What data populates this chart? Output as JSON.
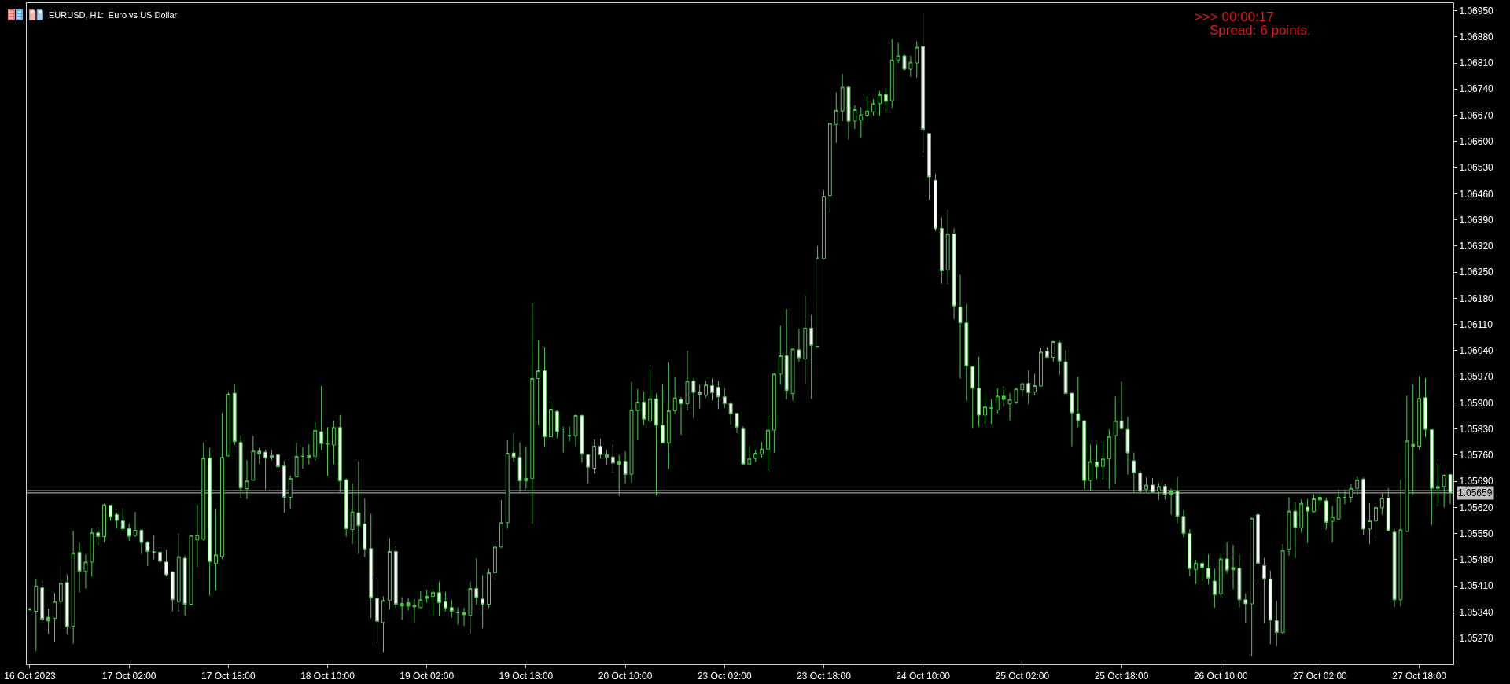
{
  "chart_data": {
    "type": "candlestick",
    "title": "EURUSD, H1:  Euro vs US Dollar",
    "annotations": [
      ">>> 00:00:17",
      "Spread: 6 points."
    ],
    "color": "#4ccc4c",
    "categories": [
      "16 Oct 2023",
      null,
      null,
      null,
      null,
      null,
      null,
      null,
      null,
      null,
      null,
      null,
      null,
      null,
      null,
      null,
      "17 Oct 02:00",
      null,
      null,
      null,
      null,
      null,
      null,
      null,
      null,
      null,
      null,
      null,
      null,
      null,
      null,
      null,
      "17 Oct 18:00",
      null,
      null,
      null,
      null,
      null,
      null,
      null,
      null,
      null,
      null,
      null,
      null,
      null,
      null,
      null,
      "18 Oct 10:00",
      null,
      null,
      null,
      null,
      null,
      null,
      null,
      null,
      null,
      null,
      null,
      null,
      null,
      null,
      null,
      "19 Oct 02:00",
      null,
      null,
      null,
      null,
      null,
      null,
      null,
      null,
      null,
      null,
      null,
      null,
      null,
      null,
      null,
      "19 Oct 18:00",
      null,
      null,
      null,
      null,
      null,
      null,
      null,
      null,
      null,
      null,
      null,
      null,
      null,
      null,
      null,
      "20 Oct 10:00",
      null,
      null,
      null,
      null,
      null,
      null,
      null,
      null,
      null,
      null,
      null,
      null,
      null,
      null,
      null,
      "23 Oct 02:00",
      null,
      null,
      null,
      null,
      null,
      null,
      null,
      null,
      null,
      null,
      null,
      null,
      null,
      null,
      null,
      "23 Oct 18:00",
      null,
      null,
      null,
      null,
      null,
      null,
      null,
      null,
      null,
      null,
      null,
      null,
      null,
      null,
      null,
      "24 Oct 10:00",
      null,
      null,
      null,
      null,
      null,
      null,
      null,
      null,
      null,
      null,
      null,
      null,
      null,
      null,
      null,
      "25 Oct 02:00",
      null,
      null,
      null,
      null,
      null,
      null,
      null,
      null,
      null,
      null,
      null,
      null,
      null,
      null,
      null,
      "25 Oct 18:00",
      null,
      null,
      null,
      null,
      null,
      null,
      null,
      null,
      null,
      null,
      null,
      null,
      null,
      null,
      null,
      "26 Oct 10:00",
      null,
      null,
      null,
      null,
      null,
      null,
      null,
      null,
      null,
      null,
      null,
      null,
      null,
      null,
      null,
      "27 Oct 02:00",
      null,
      null,
      null,
      null,
      null,
      null,
      null,
      null,
      null,
      null,
      null,
      null,
      null,
      null,
      null,
      "27 Oct 18:00",
      null,
      null,
      null,
      null,
      null
    ],
    "ohlc": [
      [
        1.05347,
        1.05352,
        1.05343,
        1.05347
      ],
      [
        1.05342,
        1.0543,
        1.05236,
        1.0541
      ],
      [
        1.05405,
        1.05424,
        1.05316,
        1.05321
      ],
      [
        1.05316,
        1.05349,
        1.05281,
        1.05326
      ],
      [
        1.05323,
        1.05391,
        1.05261,
        1.05368
      ],
      [
        1.05368,
        1.05463,
        1.05295,
        1.05417
      ],
      [
        1.05419,
        1.05441,
        1.05281,
        1.053
      ],
      [
        1.05302,
        1.05557,
        1.05256,
        1.05498
      ],
      [
        1.055,
        1.05526,
        1.05393,
        1.05449
      ],
      [
        1.05449,
        1.05494,
        1.05403,
        1.05474
      ],
      [
        1.05474,
        1.05564,
        1.05435,
        1.05552
      ],
      [
        1.05552,
        1.05566,
        1.05519,
        1.05542
      ],
      [
        1.05542,
        1.0563,
        1.05526,
        1.05627
      ],
      [
        1.05626,
        1.05627,
        1.05584,
        1.05594
      ],
      [
        1.05601,
        1.05606,
        1.05563,
        1.05585
      ],
      [
        1.05584,
        1.05616,
        1.05557,
        1.05563
      ],
      [
        1.05563,
        1.05576,
        1.05531,
        1.05543
      ],
      [
        1.05545,
        1.05608,
        1.05542,
        1.05559
      ],
      [
        1.05559,
        1.05561,
        1.05495,
        1.05526
      ],
      [
        1.05526,
        1.05531,
        1.05463,
        1.05502
      ],
      [
        1.05501,
        1.05545,
        1.05481,
        1.05501
      ],
      [
        1.055,
        1.05507,
        1.05454,
        1.05476
      ],
      [
        1.05474,
        1.05507,
        1.05436,
        1.0544
      ],
      [
        1.05447,
        1.05451,
        1.05342,
        1.05373
      ],
      [
        1.05368,
        1.05549,
        1.05342,
        1.05488
      ],
      [
        1.05484,
        1.05491,
        1.0533,
        1.05361
      ],
      [
        1.05361,
        1.05547,
        1.05359,
        1.05545
      ],
      [
        1.05533,
        1.05627,
        1.05461,
        1.05546
      ],
      [
        1.05535,
        1.05794,
        1.05531,
        1.05752
      ],
      [
        1.05752,
        1.0578,
        1.05384,
        1.05475
      ],
      [
        1.0547,
        1.05616,
        1.05398,
        1.05493
      ],
      [
        1.05489,
        1.05873,
        1.05482,
        1.05754
      ],
      [
        1.05758,
        1.05929,
        1.05757,
        1.05923
      ],
      [
        1.05926,
        1.05951,
        1.05787,
        1.05796
      ],
      [
        1.05794,
        1.05814,
        1.05646,
        1.05672
      ],
      [
        1.0567,
        1.05747,
        1.05642,
        1.05691
      ],
      [
        1.05693,
        1.05812,
        1.05691,
        1.05771
      ],
      [
        1.05771,
        1.0578,
        1.05737,
        1.05763
      ],
      [
        1.05768,
        1.05775,
        1.05668,
        1.05752
      ],
      [
        1.05759,
        1.05773,
        1.05747,
        1.05754
      ],
      [
        1.05761,
        1.05763,
        1.05721,
        1.05729
      ],
      [
        1.05731,
        1.05745,
        1.05606,
        1.05647
      ],
      [
        1.05647,
        1.05705,
        1.05616,
        1.05698
      ],
      [
        1.05702,
        1.05793,
        1.057,
        1.05757
      ],
      [
        1.05757,
        1.05782,
        1.05724,
        1.05757
      ],
      [
        1.05754,
        1.05789,
        1.05735,
        1.05759
      ],
      [
        1.05757,
        1.05849,
        1.05745,
        1.05826
      ],
      [
        1.05823,
        1.05945,
        1.05773,
        1.05791
      ],
      [
        1.0579,
        1.05835,
        1.05705,
        1.0579
      ],
      [
        1.05787,
        1.05852,
        1.05735,
        1.05834
      ],
      [
        1.05834,
        1.05868,
        1.05661,
        1.05691
      ],
      [
        1.05694,
        1.05698,
        1.05542,
        1.05563
      ],
      [
        1.05561,
        1.05684,
        1.05522,
        1.05608
      ],
      [
        1.05606,
        1.05744,
        1.05495,
        1.05571
      ],
      [
        1.05576,
        1.05644,
        1.05487,
        1.05508
      ],
      [
        1.0551,
        1.05603,
        1.05323,
        1.05378
      ],
      [
        1.05377,
        1.05431,
        1.05256,
        1.05315
      ],
      [
        1.05312,
        1.05382,
        1.05233,
        1.05371
      ],
      [
        1.05371,
        1.05538,
        1.05347,
        1.05502
      ],
      [
        1.05502,
        1.05516,
        1.05351,
        1.05361
      ],
      [
        1.05363,
        1.0538,
        1.05319,
        1.05356
      ],
      [
        1.05356,
        1.05378,
        1.05344,
        1.05365
      ],
      [
        1.05358,
        1.05375,
        1.05312,
        1.05354
      ],
      [
        1.05352,
        1.05396,
        1.05351,
        1.05373
      ],
      [
        1.05382,
        1.05399,
        1.05365,
        1.05377
      ],
      [
        1.05382,
        1.05403,
        1.0533,
        1.05393
      ],
      [
        1.05392,
        1.05422,
        1.05328,
        1.05365
      ],
      [
        1.05368,
        1.05394,
        1.05342,
        1.0535
      ],
      [
        1.05352,
        1.05373,
        1.05324,
        1.05342
      ],
      [
        1.05338,
        1.05352,
        1.05307,
        1.05338
      ],
      [
        1.05338,
        1.05351,
        1.05303,
        1.05333
      ],
      [
        1.05331,
        1.05422,
        1.05282,
        1.05403
      ],
      [
        1.05403,
        1.05484,
        1.05359,
        1.05378
      ],
      [
        1.05375,
        1.05439,
        1.05296,
        1.05361
      ],
      [
        1.05361,
        1.05456,
        1.05351,
        1.05445
      ],
      [
        1.05445,
        1.05526,
        1.05428,
        1.05514
      ],
      [
        1.05514,
        1.0564,
        1.05512,
        1.05579
      ],
      [
        1.05579,
        1.058,
        1.05563,
        1.05765
      ],
      [
        1.05766,
        1.05818,
        1.05742,
        1.05754
      ],
      [
        1.05754,
        1.05794,
        1.0566,
        1.05691
      ],
      [
        1.05691,
        1.05784,
        1.0567,
        1.05698
      ],
      [
        1.05698,
        1.06168,
        1.05576,
        1.05965
      ],
      [
        1.05965,
        1.06067,
        1.0584,
        1.05986
      ],
      [
        1.05986,
        1.0605,
        1.05784,
        1.05809
      ],
      [
        1.05809,
        1.05905,
        1.05808,
        1.05883
      ],
      [
        1.05877,
        1.05881,
        1.05805,
        1.05823
      ],
      [
        1.05822,
        1.05836,
        1.05767,
        1.05822
      ],
      [
        1.05812,
        1.05837,
        1.05797,
        1.05812
      ],
      [
        1.05812,
        1.05869,
        1.05784,
        1.05866
      ],
      [
        1.05866,
        1.05869,
        1.0574,
        1.05763
      ],
      [
        1.05761,
        1.05763,
        1.05684,
        1.05728
      ],
      [
        1.05725,
        1.05802,
        1.05711,
        1.05784
      ],
      [
        1.05784,
        1.05803,
        1.05751,
        1.05761
      ],
      [
        1.05761,
        1.05774,
        1.05734,
        1.05754
      ],
      [
        1.05755,
        1.05789,
        1.05714,
        1.05739
      ],
      [
        1.05735,
        1.05761,
        1.05651,
        1.05744
      ],
      [
        1.05744,
        1.0577,
        1.05684,
        1.05708
      ],
      [
        1.05709,
        1.05956,
        1.05686,
        1.05881
      ],
      [
        1.05879,
        1.05937,
        1.058,
        1.05902
      ],
      [
        1.05902,
        1.0593,
        1.0584,
        1.05856
      ],
      [
        1.05851,
        1.05991,
        1.05849,
        1.05911
      ],
      [
        1.05911,
        1.05925,
        1.05652,
        1.0584
      ],
      [
        1.0584,
        1.05951,
        1.05791,
        1.05793
      ],
      [
        1.05793,
        1.06008,
        1.05723,
        1.05879
      ],
      [
        1.05879,
        1.05968,
        1.05872,
        1.05913
      ],
      [
        1.05909,
        1.05916,
        1.05814,
        1.05898
      ],
      [
        1.05898,
        1.06039,
        1.0588,
        1.05958
      ],
      [
        1.05958,
        1.05965,
        1.05859,
        1.05928
      ],
      [
        1.05927,
        1.05949,
        1.05885,
        1.05923
      ],
      [
        1.0592,
        1.05958,
        1.05914,
        1.05948
      ],
      [
        1.05946,
        1.05965,
        1.05906,
        1.05927
      ],
      [
        1.05942,
        1.05958,
        1.05883,
        1.05916
      ],
      [
        1.05916,
        1.05939,
        1.05886,
        1.05898
      ],
      [
        1.05898,
        1.05902,
        1.05842,
        1.05871
      ],
      [
        1.05872,
        1.05873,
        1.05819,
        1.05835
      ],
      [
        1.0583,
        1.05837,
        1.05735,
        1.05736
      ],
      [
        1.05736,
        1.05784,
        1.05735,
        1.05751
      ],
      [
        1.05751,
        1.05774,
        1.05742,
        1.05765
      ],
      [
        1.05763,
        1.05795,
        1.05754,
        1.05776
      ],
      [
        1.05776,
        1.05865,
        1.05718,
        1.05827
      ],
      [
        1.05827,
        1.0598,
        1.05767,
        1.05977
      ],
      [
        1.05977,
        1.06106,
        1.05949,
        1.06026
      ],
      [
        1.06026,
        1.06151,
        1.05909,
        1.05933
      ],
      [
        1.05925,
        1.06046,
        1.05906,
        1.06044
      ],
      [
        1.06042,
        1.06098,
        1.0601,
        1.06021
      ],
      [
        1.06018,
        1.06188,
        1.05951,
        1.061
      ],
      [
        1.061,
        1.06135,
        1.05911,
        1.06054
      ],
      [
        1.06051,
        1.0632,
        1.0605,
        1.06288
      ],
      [
        1.06286,
        1.06469,
        1.06284,
        1.06453
      ],
      [
        1.06455,
        1.0665,
        1.06409,
        1.06648
      ],
      [
        1.06645,
        1.06731,
        1.06596,
        1.06683
      ],
      [
        1.06681,
        1.06781,
        1.06654,
        1.06745
      ],
      [
        1.06745,
        1.0675,
        1.06604,
        1.06654
      ],
      [
        1.06654,
        1.06697,
        1.06633,
        1.06685
      ],
      [
        1.06657,
        1.06691,
        1.06609,
        1.06671
      ],
      [
        1.0667,
        1.06721,
        1.06665,
        1.06681
      ],
      [
        1.06679,
        1.06713,
        1.06669,
        1.06701
      ],
      [
        1.06701,
        1.06735,
        1.06669,
        1.06725
      ],
      [
        1.06725,
        1.06743,
        1.06681,
        1.06707
      ],
      [
        1.06709,
        1.06874,
        1.06689,
        1.06818
      ],
      [
        1.06818,
        1.06864,
        1.06809,
        1.06829
      ],
      [
        1.06829,
        1.06833,
        1.0679,
        1.06793
      ],
      [
        1.06793,
        1.06829,
        1.06773,
        1.06812
      ],
      [
        1.0681,
        1.06868,
        1.0677,
        1.06852
      ],
      [
        1.06854,
        1.06945,
        1.06571,
        1.06632
      ],
      [
        1.06621,
        1.06622,
        1.06443,
        1.06505
      ],
      [
        1.06496,
        1.06513,
        1.0636,
        1.06366
      ],
      [
        1.06367,
        1.06396,
        1.06219,
        1.06253
      ],
      [
        1.06255,
        1.06417,
        1.06219,
        1.06352
      ],
      [
        1.06352,
        1.06367,
        1.06124,
        1.06159
      ],
      [
        1.06156,
        1.06243,
        1.05965,
        1.06114
      ],
      [
        1.06114,
        1.06164,
        1.05906,
        1.05999
      ],
      [
        1.05997,
        1.05999,
        1.05832,
        1.05939
      ],
      [
        1.05939,
        1.06023,
        1.05836,
        1.05867
      ],
      [
        1.05867,
        1.05918,
        1.05844,
        1.05889
      ],
      [
        1.05886,
        1.0591,
        1.05844,
        1.05886
      ],
      [
        1.05881,
        1.05939,
        1.05872,
        1.05918
      ],
      [
        1.05918,
        1.05945,
        1.05889,
        1.05909
      ],
      [
        1.05897,
        1.05926,
        1.05852,
        1.05909
      ],
      [
        1.05902,
        1.05941,
        1.05897,
        1.05937
      ],
      [
        1.05935,
        1.05953,
        1.05917,
        1.05951
      ],
      [
        1.05952,
        1.05988,
        1.05896,
        1.05927
      ],
      [
        1.05929,
        1.05978,
        1.0592,
        1.05946
      ],
      [
        1.05945,
        1.06048,
        1.05944,
        1.06036
      ],
      [
        1.06038,
        1.0605,
        1.0602,
        1.06022
      ],
      [
        1.06022,
        1.06066,
        1.0601,
        1.06064
      ],
      [
        1.06061,
        1.06068,
        1.05975,
        1.06012
      ],
      [
        1.0601,
        1.06041,
        1.05924,
        1.05925
      ],
      [
        1.05926,
        1.05927,
        1.05784,
        1.05873
      ],
      [
        1.05871,
        1.0597,
        1.05835,
        1.05852
      ],
      [
        1.05852,
        1.05854,
        1.05669,
        1.05692
      ],
      [
        1.05692,
        1.05788,
        1.05664,
        1.05743
      ],
      [
        1.05742,
        1.05788,
        1.05696,
        1.05729
      ],
      [
        1.0573,
        1.05798,
        1.05696,
        1.0575
      ],
      [
        1.0575,
        1.05829,
        1.05669,
        1.0581
      ],
      [
        1.05812,
        1.05917,
        1.05682,
        1.05852
      ],
      [
        1.05852,
        1.05957,
        1.05829,
        1.05831
      ],
      [
        1.05829,
        1.05863,
        1.05708,
        1.05766
      ],
      [
        1.05745,
        1.05767,
        1.05661,
        1.05713
      ],
      [
        1.05712,
        1.05718,
        1.05657,
        1.05663
      ],
      [
        1.05669,
        1.05701,
        1.05661,
        1.0568
      ],
      [
        1.0568,
        1.05699,
        1.05659,
        1.05661
      ],
      [
        1.05664,
        1.05685,
        1.0564,
        1.05676
      ],
      [
        1.05677,
        1.05682,
        1.05641,
        1.05655
      ],
      [
        1.05655,
        1.05671,
        1.05601,
        1.05664
      ],
      [
        1.05663,
        1.05702,
        1.05577,
        1.05596
      ],
      [
        1.05596,
        1.05613,
        1.0554,
        1.0555
      ],
      [
        1.0555,
        1.05562,
        1.05436,
        1.05456
      ],
      [
        1.05454,
        1.0548,
        1.05415,
        1.0547
      ],
      [
        1.0547,
        1.0548,
        1.05423,
        1.05459
      ],
      [
        1.05457,
        1.05494,
        1.05414,
        1.05431
      ],
      [
        1.05423,
        1.05456,
        1.05352,
        1.05386
      ],
      [
        1.05389,
        1.05496,
        1.05381,
        1.05482
      ],
      [
        1.05482,
        1.05527,
        1.05443,
        1.05452
      ],
      [
        1.05459,
        1.0552,
        1.05401,
        1.05453
      ],
      [
        1.05457,
        1.05494,
        1.05352,
        1.05373
      ],
      [
        1.05373,
        1.0539,
        1.05311,
        1.05362
      ],
      [
        1.05362,
        1.05593,
        1.05222,
        1.05591
      ],
      [
        1.05601,
        1.05604,
        1.05415,
        1.0547
      ],
      [
        1.05464,
        1.05485,
        1.0531,
        1.05428
      ],
      [
        1.05429,
        1.05451,
        1.05254,
        1.05318
      ],
      [
        1.05317,
        1.0537,
        1.05248,
        1.05285
      ],
      [
        1.05285,
        1.05522,
        1.0528,
        1.05505
      ],
      [
        1.05508,
        1.05647,
        1.05491,
        1.0561
      ],
      [
        1.0561,
        1.05633,
        1.05484,
        1.05566
      ],
      [
        1.05565,
        1.05643,
        1.05552,
        1.05631
      ],
      [
        1.05621,
        1.05643,
        1.05525,
        1.0561
      ],
      [
        1.05609,
        1.05655,
        1.05607,
        1.05643
      ],
      [
        1.05647,
        1.05657,
        1.05626,
        1.0564
      ],
      [
        1.05638,
        1.05647,
        1.05561,
        1.0558
      ],
      [
        1.05583,
        1.05624,
        1.05526,
        1.05595
      ],
      [
        1.05589,
        1.05668,
        1.05585,
        1.05647
      ],
      [
        1.05647,
        1.05668,
        1.05629,
        1.05647
      ],
      [
        1.05647,
        1.05682,
        1.05633,
        1.05671
      ],
      [
        1.05671,
        1.05702,
        1.05652,
        1.05694
      ],
      [
        1.05696,
        1.057,
        1.05547,
        1.05562
      ],
      [
        1.05562,
        1.05631,
        1.05522,
        1.05584
      ],
      [
        1.05584,
        1.05624,
        1.05538,
        1.0562
      ],
      [
        1.05619,
        1.05657,
        1.05601,
        1.05645
      ],
      [
        1.05645,
        1.05671,
        1.05556,
        1.05558
      ],
      [
        1.05554,
        1.05562,
        1.05353,
        1.05373
      ],
      [
        1.05373,
        1.05694,
        1.05355,
        1.0556
      ],
      [
        1.05556,
        1.05919,
        1.05555,
        1.05798
      ],
      [
        1.05789,
        1.05949,
        1.05655,
        1.05784
      ],
      [
        1.05784,
        1.05971,
        1.05775,
        1.05912
      ],
      [
        1.05914,
        1.05966,
        1.05808,
        1.05829
      ],
      [
        1.05828,
        1.05829,
        1.05573,
        1.05671
      ],
      [
        1.05676,
        1.05738,
        1.05622,
        1.05671
      ],
      [
        1.05676,
        1.05709,
        1.0562,
        1.05706
      ],
      [
        1.05708,
        1.0571,
        1.05629,
        1.05659
      ]
    ],
    "colors": [
      "#4ccc4c",
      "#000000",
      "#ffffff",
      "#4ccc4c",
      "#000000",
      "#000000",
      "#ffffff",
      "#000000",
      "#ffffff",
      "#000000",
      "#000000",
      "#ffffff",
      "#000000",
      "#ffffff",
      "#ffffff",
      "#ffffff",
      "#ffffff",
      "#000000",
      "#ffffff",
      "#ffffff",
      "#4ccc4c",
      "#ffffff",
      "#ffffff",
      "#ffffff",
      "#000000",
      "#ffffff",
      "#000000",
      "#000000",
      "#000000",
      "#ffffff",
      "#000000",
      "#000000",
      "#000000",
      "#ffffff",
      "#ffffff",
      "#000000",
      "#000000",
      "#4ccc4c",
      "#ffffff",
      "#4ccc4c",
      "#ffffff",
      "#ffffff",
      "#000000",
      "#000000",
      "#4ccc4c",
      "#4ccc4c",
      "#000000",
      "#ffffff",
      "#4ccc4c",
      "#000000",
      "#ffffff",
      "#ffffff",
      "#000000",
      "#ffffff",
      "#ffffff",
      "#ffffff",
      "#ffffff",
      "#000000",
      "#000000",
      "#ffffff",
      "#4ccc4c",
      "#4ccc4c",
      "#4ccc4c",
      "#000000",
      "#4ccc4c",
      "#000000",
      "#ffffff",
      "#ffffff",
      "#ffffff",
      "#4ccc4c",
      "#4ccc4c",
      "#000000",
      "#ffffff",
      "#ffffff",
      "#000000",
      "#000000",
      "#000000",
      "#000000",
      "#ffffff",
      "#ffffff",
      "#4ccc4c",
      "#000000",
      "#000000",
      "#ffffff",
      "#000000",
      "#ffffff",
      "#4ccc4c",
      "#4ccc4c",
      "#000000",
      "#ffffff",
      "#ffffff",
      "#000000",
      "#ffffff",
      "#4ccc4c",
      "#ffffff",
      "#4ccc4c",
      "#ffffff",
      "#000000",
      "#000000",
      "#ffffff",
      "#000000",
      "#ffffff",
      "#ffffff",
      "#000000",
      "#000000",
      "#ffffff",
      "#000000",
      "#ffffff",
      "#4ccc4c",
      "#000000",
      "#ffffff",
      "#ffffff",
      "#ffffff",
      "#ffffff",
      "#ffffff",
      "#ffffff",
      "#000000",
      "#000000",
      "#000000",
      "#000000",
      "#000000",
      "#000000",
      "#ffffff",
      "#000000",
      "#ffffff",
      "#000000",
      "#ffffff",
      "#000000",
      "#000000",
      "#000000",
      "#000000",
      "#000000",
      "#ffffff",
      "#000000",
      "#000000",
      "#000000",
      "#000000",
      "#000000",
      "#ffffff",
      "#000000",
      "#000000",
      "#ffffff",
      "#000000",
      "#000000",
      "#ffffff",
      "#ffffff",
      "#ffffff",
      "#ffffff",
      "#000000",
      "#ffffff",
      "#ffffff",
      "#ffffff",
      "#ffffff",
      "#ffffff",
      "#000000",
      "#4ccc4c",
      "#000000",
      "#4ccc4c",
      "#000000",
      "#000000",
      "#000000",
      "#ffffff",
      "#000000",
      "#000000",
      "#ffffff",
      "#000000",
      "#ffffff",
      "#ffffff",
      "#ffffff",
      "#ffffff",
      "#ffffff",
      "#000000",
      "#ffffff",
      "#000000",
      "#000000",
      "#000000",
      "#ffffff",
      "#ffffff",
      "#ffffff",
      "#ffffff",
      "#000000",
      "#ffffff",
      "#000000",
      "#ffffff",
      "#4ccc4c",
      "#ffffff",
      "#ffffff",
      "#ffffff",
      "#000000",
      "#ffffff",
      "#ffffff",
      "#ffffff",
      "#000000",
      "#ffffff",
      "#4ccc4c",
      "#ffffff",
      "#ffffff",
      "#000000",
      "#ffffff",
      "#ffffff",
      "#ffffff",
      "#ffffff",
      "#000000",
      "#000000",
      "#ffffff",
      "#000000",
      "#ffffff",
      "#000000",
      "#4ccc4c",
      "#ffffff",
      "#000000",
      "#000000",
      "#4ccc4c",
      "#000000",
      "#000000",
      "#ffffff",
      "#000000",
      "#000000",
      "#000000",
      "#ffffff",
      "#ffffff",
      "#000000",
      "#000000",
      "#4ccc4c",
      "#000000",
      "#ffffff",
      "#ffffff",
      "#4ccc4c",
      "#000000",
      "#ffffff"
    ],
    "ylim": [
      1.052,
      1.0697
    ],
    "yticks": [
      {
        "value": 1.0527,
        "label": "1.05270"
      },
      {
        "value": 1.0534,
        "label": "1.05340"
      },
      {
        "value": 1.0541,
        "label": "1.05410"
      },
      {
        "value": 1.0548,
        "label": "1.05480"
      },
      {
        "value": 1.0555,
        "label": "1.05550"
      },
      {
        "value": 1.0562,
        "label": "1.05620"
      },
      {
        "value": 1.0569,
        "label": "1.05690"
      },
      {
        "value": 1.0576,
        "label": "1.05760"
      },
      {
        "value": 1.0583,
        "label": "1.05830"
      },
      {
        "value": 1.059,
        "label": "1.05900"
      },
      {
        "value": 1.0597,
        "label": "1.05970"
      },
      {
        "value": 1.0604,
        "label": "1.06040"
      },
      {
        "value": 1.0611,
        "label": "1.06110"
      },
      {
        "value": 1.0618,
        "label": "1.06180"
      },
      {
        "value": 1.0625,
        "label": "1.06250"
      },
      {
        "value": 1.0632,
        "label": "1.06320"
      },
      {
        "value": 1.0639,
        "label": "1.06390"
      },
      {
        "value": 1.0646,
        "label": "1.06460"
      },
      {
        "value": 1.0653,
        "label": "1.06530"
      },
      {
        "value": 1.066,
        "label": "1.06600"
      },
      {
        "value": 1.0667,
        "label": "1.06670"
      },
      {
        "value": 1.0674,
        "label": "1.06740"
      },
      {
        "value": 1.0681,
        "label": "1.06810"
      },
      {
        "value": 1.0688,
        "label": "1.06880"
      },
      {
        "value": 1.0695,
        "label": "1.06950"
      }
    ],
    "ref_lines": [
      {
        "axis": "y",
        "value": 1.05665,
        "color": "#c0c0c0"
      },
      {
        "axis": "y",
        "value": 1.05659,
        "label": "1.05659",
        "color": "#c0c0c0"
      }
    ]
  }
}
